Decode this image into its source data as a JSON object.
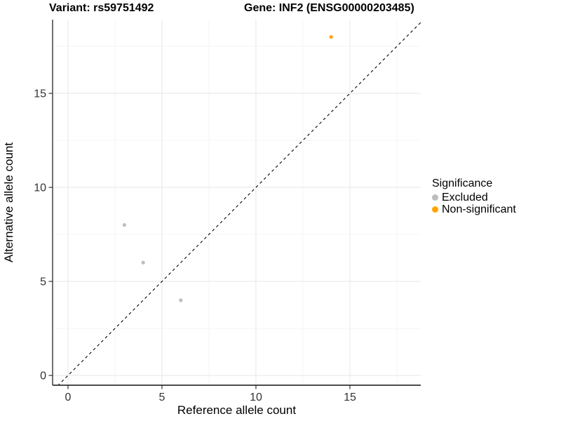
{
  "titles": {
    "variant": "Variant: rs59751492",
    "gene": "Gene: INF2 (ENSG00000203485)"
  },
  "legend": {
    "title": "Significance"
  },
  "colors": {
    "excluded": "#BEBEBE",
    "non_significant": "#FFA500",
    "grid_major": "#E8E8E8",
    "grid_minor": "#F4F4F4",
    "axis_line": "#333333",
    "tick_text": "#333333",
    "identity_line": "#000000"
  },
  "chart_data": {
    "type": "scatter",
    "title": "",
    "xlabel": "Reference allele count",
    "ylabel": "Alternative allele count",
    "xlim": [
      -0.82,
      18.77
    ],
    "ylim": [
      -0.52,
      18.92
    ],
    "x_ticks": [
      0,
      5,
      10,
      15
    ],
    "y_ticks": [
      0,
      5,
      10,
      15
    ],
    "x_minor_ticks": [
      2.5,
      7.5,
      12.5,
      17.5
    ],
    "y_minor_ticks": [
      2.5,
      7.5,
      12.5,
      17.5
    ],
    "grid": true,
    "identity_line": {
      "slope": 1,
      "intercept": 0,
      "style": "dashed",
      "color": "#000000"
    },
    "legend": {
      "title": "Significance",
      "position": "right"
    },
    "series": [
      {
        "name": "Excluded",
        "color": "#BEBEBE",
        "points": [
          [
            3,
            8
          ],
          [
            4,
            6
          ],
          [
            6,
            4
          ]
        ]
      },
      {
        "name": "Non-significant",
        "color": "#FFA500",
        "points": [
          [
            14,
            18
          ]
        ]
      }
    ]
  }
}
